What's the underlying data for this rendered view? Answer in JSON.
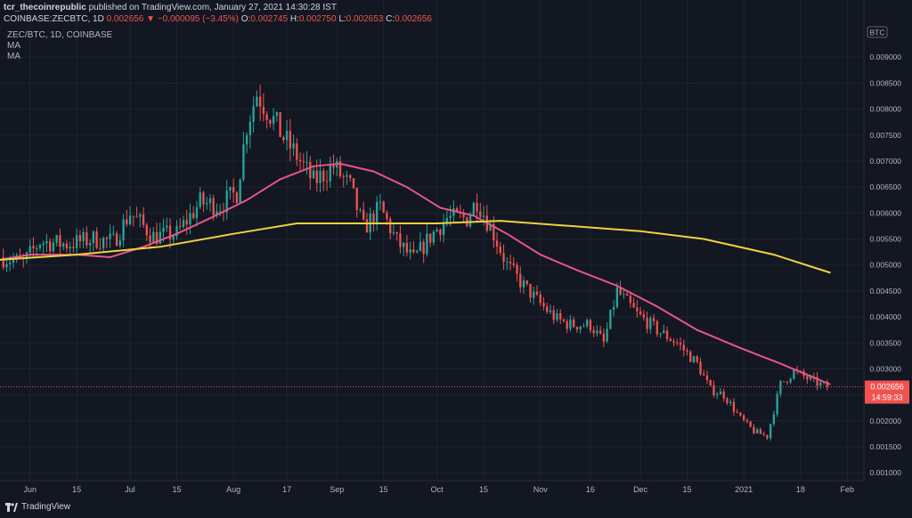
{
  "header": {
    "publisher": "tcr_thecoinrepublic",
    "published_text": "published on TradingView.com, January 27, 2021 14:30:28 IST",
    "symbol": "COINBASE:ZECBTC, 1D",
    "last": "0.002656",
    "change": "−0.000095 (−3.45%)",
    "o_label": "O:",
    "o": "0.002745",
    "h_label": "H:",
    "h": "0.002750",
    "l_label": "L:",
    "l": "0.002653",
    "c_label": "C:",
    "c": "0.002656"
  },
  "legend": {
    "pair": "ZEC/BTC, 1D, COINBASE",
    "ma1": "MA",
    "ma2": "MA"
  },
  "brand": "TradingView",
  "colors": {
    "background": "#131722",
    "grid": "#1f2433",
    "up": "#26a69a",
    "down": "#ef5350",
    "ma_fast": "#e7558a",
    "ma_slow": "#f0d240",
    "price_tag": "#ef5350"
  },
  "chart_data": {
    "type": "candlestick",
    "currency_badge": "BTC",
    "price_label": "0.002656",
    "countdown": "14:59:33",
    "ylim": [
      0.00085,
      0.0101
    ],
    "xlim": [
      "2020-05-23",
      "2021-02-06"
    ],
    "y_ticks": [
      "0.009000",
      "0.008500",
      "0.008000",
      "0.007500",
      "0.007000",
      "0.006500",
      "0.006000",
      "0.005500",
      "0.005000",
      "0.004500",
      "0.004000",
      "0.003500",
      "0.003000",
      "0.002500",
      "0.002000",
      "0.001500",
      "0.001000"
    ],
    "x_ticks": [
      {
        "label": "Jun",
        "date": "2020-06-01"
      },
      {
        "label": "15",
        "date": "2020-06-15"
      },
      {
        "label": "Jul",
        "date": "2020-07-01"
      },
      {
        "label": "15",
        "date": "2020-07-15"
      },
      {
        "label": "Aug",
        "date": "2020-08-01"
      },
      {
        "label": "17",
        "date": "2020-08-17"
      },
      {
        "label": "Sep",
        "date": "2020-09-01"
      },
      {
        "label": "15",
        "date": "2020-09-15"
      },
      {
        "label": "Oct",
        "date": "2020-10-01"
      },
      {
        "label": "15",
        "date": "2020-10-15"
      },
      {
        "label": "Nov",
        "date": "2020-11-01"
      },
      {
        "label": "16",
        "date": "2020-11-16"
      },
      {
        "label": "Dec",
        "date": "2020-12-01"
      },
      {
        "label": "15",
        "date": "2020-12-15"
      },
      {
        "label": "2021",
        "date": "2021-01-01"
      },
      {
        "label": "18",
        "date": "2021-01-18"
      },
      {
        "label": "Feb",
        "date": "2021-02-01"
      }
    ],
    "close_path": [
      [
        "2020-05-23",
        0.00515
      ],
      [
        "2020-05-30",
        0.00505
      ],
      [
        "2020-06-04",
        0.00545
      ],
      [
        "2020-06-12",
        0.0054
      ],
      [
        "2020-06-20",
        0.0055
      ],
      [
        "2020-06-26",
        0.00545
      ],
      [
        "2020-07-01",
        0.006
      ],
      [
        "2020-07-08",
        0.00555
      ],
      [
        "2020-07-15",
        0.0056
      ],
      [
        "2020-07-22",
        0.0062
      ],
      [
        "2020-07-28",
        0.00615
      ],
      [
        "2020-08-02",
        0.0064
      ],
      [
        "2020-08-05",
        0.0077
      ],
      [
        "2020-08-08",
        0.0083
      ],
      [
        "2020-08-12",
        0.0079
      ],
      [
        "2020-08-16",
        0.00745
      ],
      [
        "2020-08-20",
        0.0071
      ],
      [
        "2020-08-25",
        0.0066
      ],
      [
        "2020-08-31",
        0.0069
      ],
      [
        "2020-09-05",
        0.0065
      ],
      [
        "2020-09-09",
        0.0057
      ],
      [
        "2020-09-14",
        0.0061
      ],
      [
        "2020-09-19",
        0.00545
      ],
      [
        "2020-09-24",
        0.0051
      ],
      [
        "2020-09-29",
        0.00555
      ],
      [
        "2020-10-04",
        0.0059
      ],
      [
        "2020-10-10",
        0.0059
      ],
      [
        "2020-10-13",
        0.00625
      ],
      [
        "2020-10-18",
        0.0056
      ],
      [
        "2020-10-22",
        0.005
      ],
      [
        "2020-10-27",
        0.0046
      ],
      [
        "2020-11-01",
        0.00425
      ],
      [
        "2020-11-06",
        0.00395
      ],
      [
        "2020-11-10",
        0.00385
      ],
      [
        "2020-11-16",
        0.00385
      ],
      [
        "2020-11-20",
        0.0035
      ],
      [
        "2020-11-24",
        0.0045
      ],
      [
        "2020-11-30",
        0.00405
      ],
      [
        "2020-12-06",
        0.00375
      ],
      [
        "2020-12-12",
        0.0035
      ],
      [
        "2020-12-18",
        0.0031
      ],
      [
        "2020-12-22",
        0.0026
      ],
      [
        "2020-12-26",
        0.0025
      ],
      [
        "2020-12-31",
        0.00205
      ],
      [
        "2021-01-04",
        0.0018
      ],
      [
        "2021-01-08",
        0.0017
      ],
      [
        "2021-01-12",
        0.0027
      ],
      [
        "2021-01-16",
        0.00295
      ],
      [
        "2021-01-22",
        0.00275
      ],
      [
        "2021-01-26",
        0.002656
      ]
    ],
    "series": [
      {
        "values": [
          [
            "2020-05-23",
            0.0051
          ],
          [
            "2020-06-01",
            0.0052
          ],
          [
            "2020-06-15",
            0.0052
          ],
          [
            "2020-06-25",
            0.00515
          ],
          [
            "2020-07-05",
            0.00535
          ],
          [
            "2020-07-15",
            0.0056
          ],
          [
            "2020-07-25",
            0.0059
          ],
          [
            "2020-08-05",
            0.00625
          ],
          [
            "2020-08-15",
            0.00665
          ],
          [
            "2020-08-25",
            0.0069
          ],
          [
            "2020-09-02",
            0.00695
          ],
          [
            "2020-09-12",
            0.0068
          ],
          [
            "2020-09-22",
            0.0065
          ],
          [
            "2020-10-02",
            0.0061
          ],
          [
            "2020-10-12",
            0.00595
          ],
          [
            "2020-10-22",
            0.0056
          ],
          [
            "2020-11-01",
            0.0052
          ],
          [
            "2020-11-12",
            0.0049
          ],
          [
            "2020-11-24",
            0.0046
          ],
          [
            "2020-12-06",
            0.0042
          ],
          [
            "2020-12-18",
            0.00375
          ],
          [
            "2020-12-31",
            0.0034
          ],
          [
            "2021-01-12",
            0.0031
          ],
          [
            "2021-01-27",
            0.0027
          ]
        ]
      },
      {
        "values": [
          [
            "2020-05-23",
            0.0051
          ],
          [
            "2020-06-15",
            0.0052
          ],
          [
            "2020-07-10",
            0.00535
          ],
          [
            "2020-08-01",
            0.0056
          ],
          [
            "2020-08-20",
            0.0058
          ],
          [
            "2020-09-10",
            0.0058
          ],
          [
            "2020-10-01",
            0.0058
          ],
          [
            "2020-10-20",
            0.00585
          ],
          [
            "2020-11-10",
            0.00575
          ],
          [
            "2020-12-01",
            0.00565
          ],
          [
            "2020-12-20",
            0.0055
          ],
          [
            "2021-01-10",
            0.0052
          ],
          [
            "2021-01-27",
            0.00485
          ]
        ]
      }
    ]
  }
}
